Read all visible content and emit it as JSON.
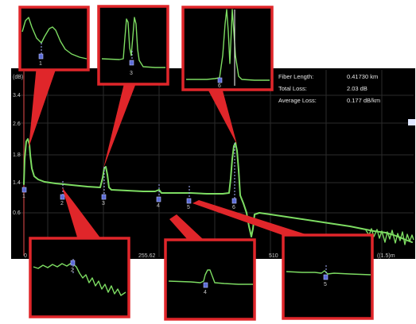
{
  "colors": {
    "trace": "#7ddc62",
    "callout_border": "#e0262a",
    "background": "#000000",
    "event_marker": "#5b6bd6"
  },
  "summary": {
    "fiber_length_label": "Fiber Length:",
    "fiber_length_value": "0.41730 km",
    "total_loss_label": "Total Loss:",
    "total_loss_value": "2.03 dB",
    "average_loss_label": "Average Loss:",
    "average_loss_value": "0.177 dB/km"
  },
  "y_axis": {
    "top_label": "(dB)",
    "ticks": [
      "3.4",
      "2.6",
      "1.8",
      "1.4",
      "0.6"
    ]
  },
  "x_axis": {
    "ticks": [
      "0",
      "255.62",
      "510"
    ],
    "end_label": "((1.5)m"
  },
  "events": [
    {
      "label": "1"
    },
    {
      "label": "2"
    },
    {
      "label": "3"
    },
    {
      "label": "4"
    },
    {
      "label": "5"
    },
    {
      "label": "6"
    }
  ],
  "callouts": [
    {
      "name": "event-1-zoom",
      "marker_label": "1"
    },
    {
      "name": "event-3-zoom",
      "marker_label": "3"
    },
    {
      "name": "event-6-zoom",
      "marker_label": "6"
    },
    {
      "name": "event-2-zoom",
      "marker_label": "2"
    },
    {
      "name": "event-4-zoom",
      "marker_label": "4"
    },
    {
      "name": "event-5-zoom",
      "marker_label": "5"
    }
  ]
}
